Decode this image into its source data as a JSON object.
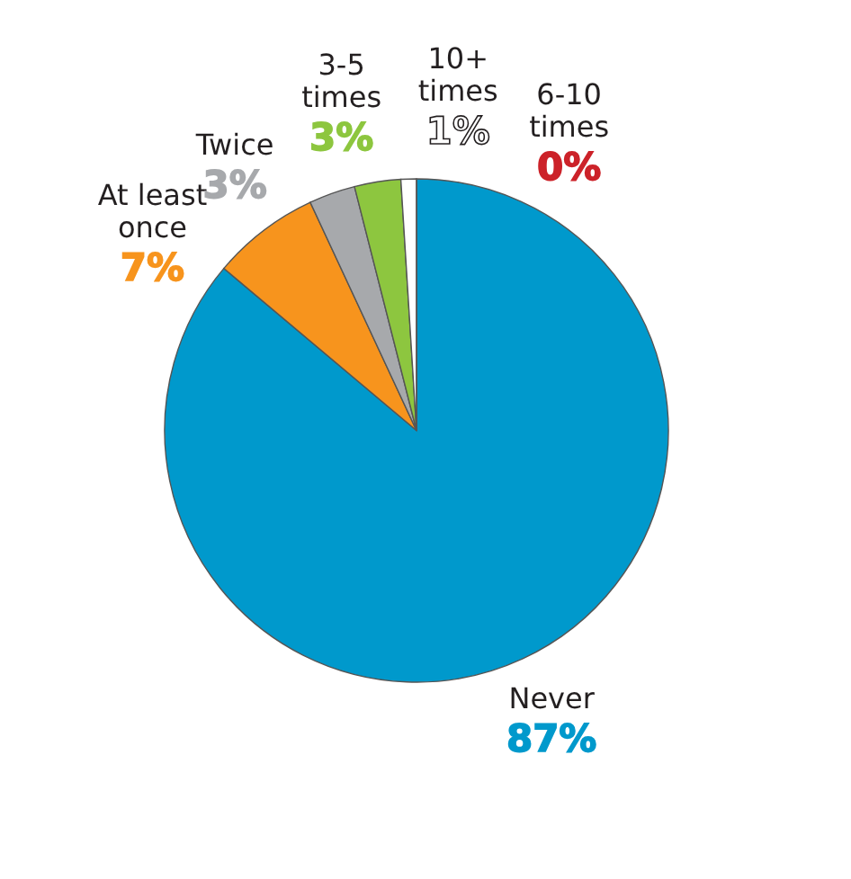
{
  "chart_data": {
    "type": "pie",
    "categories": [
      "Never",
      "At least\nonce",
      "Twice",
      "3-5\ntimes",
      "10+\ntimes",
      "6-10\ntimes"
    ],
    "values": [
      87,
      7,
      3,
      3,
      1,
      0
    ],
    "value_labels": [
      "87%",
      "7%",
      "3%",
      "3%",
      "1%",
      "0%"
    ],
    "colors": [
      "#0099cc",
      "#f7941d",
      "#a7a9ac",
      "#8dc63f",
      "#ffffff",
      "#cc2229"
    ]
  }
}
